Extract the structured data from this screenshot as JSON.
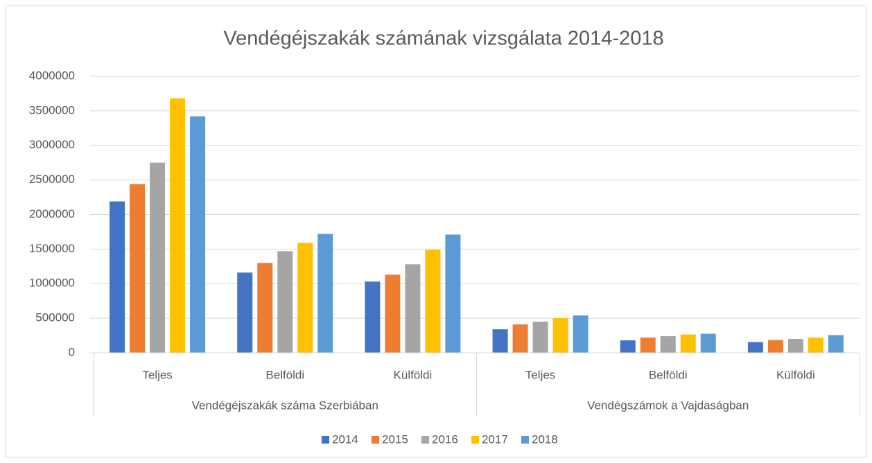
{
  "chart_data": {
    "type": "bar",
    "title": "Vendégéjszakák számának vizsgálata 2014-2018",
    "categories": [
      "Teljes",
      "Belföldi",
      "Külföldi",
      "Teljes",
      "Belföldi",
      "Külföldi"
    ],
    "groups": [
      "Vendégéjszakák száma Szerbiában",
      "Vendégszámok a Vajdaságban"
    ],
    "series": [
      {
        "name": "2014",
        "color": "#4472c4",
        "values": [
          2190000,
          1160000,
          1030000,
          340000,
          180000,
          155000
        ]
      },
      {
        "name": "2015",
        "color": "#ed7d31",
        "values": [
          2440000,
          1300000,
          1130000,
          410000,
          220000,
          185000
        ]
      },
      {
        "name": "2016",
        "color": "#a5a5a5",
        "values": [
          2750000,
          1470000,
          1280000,
          450000,
          240000,
          200000
        ]
      },
      {
        "name": "2017",
        "color": "#ffc000",
        "values": [
          3680000,
          1590000,
          1490000,
          500000,
          265000,
          220000
        ]
      },
      {
        "name": "2018",
        "color": "#5b9bd5",
        "values": [
          3420000,
          1720000,
          1710000,
          540000,
          275000,
          255000
        ]
      }
    ],
    "ylim": [
      0,
      4000000
    ],
    "yticks": [
      0,
      500000,
      1000000,
      1500000,
      2000000,
      2500000,
      3000000,
      3500000,
      4000000
    ],
    "grid": true,
    "legend": "bottom"
  }
}
